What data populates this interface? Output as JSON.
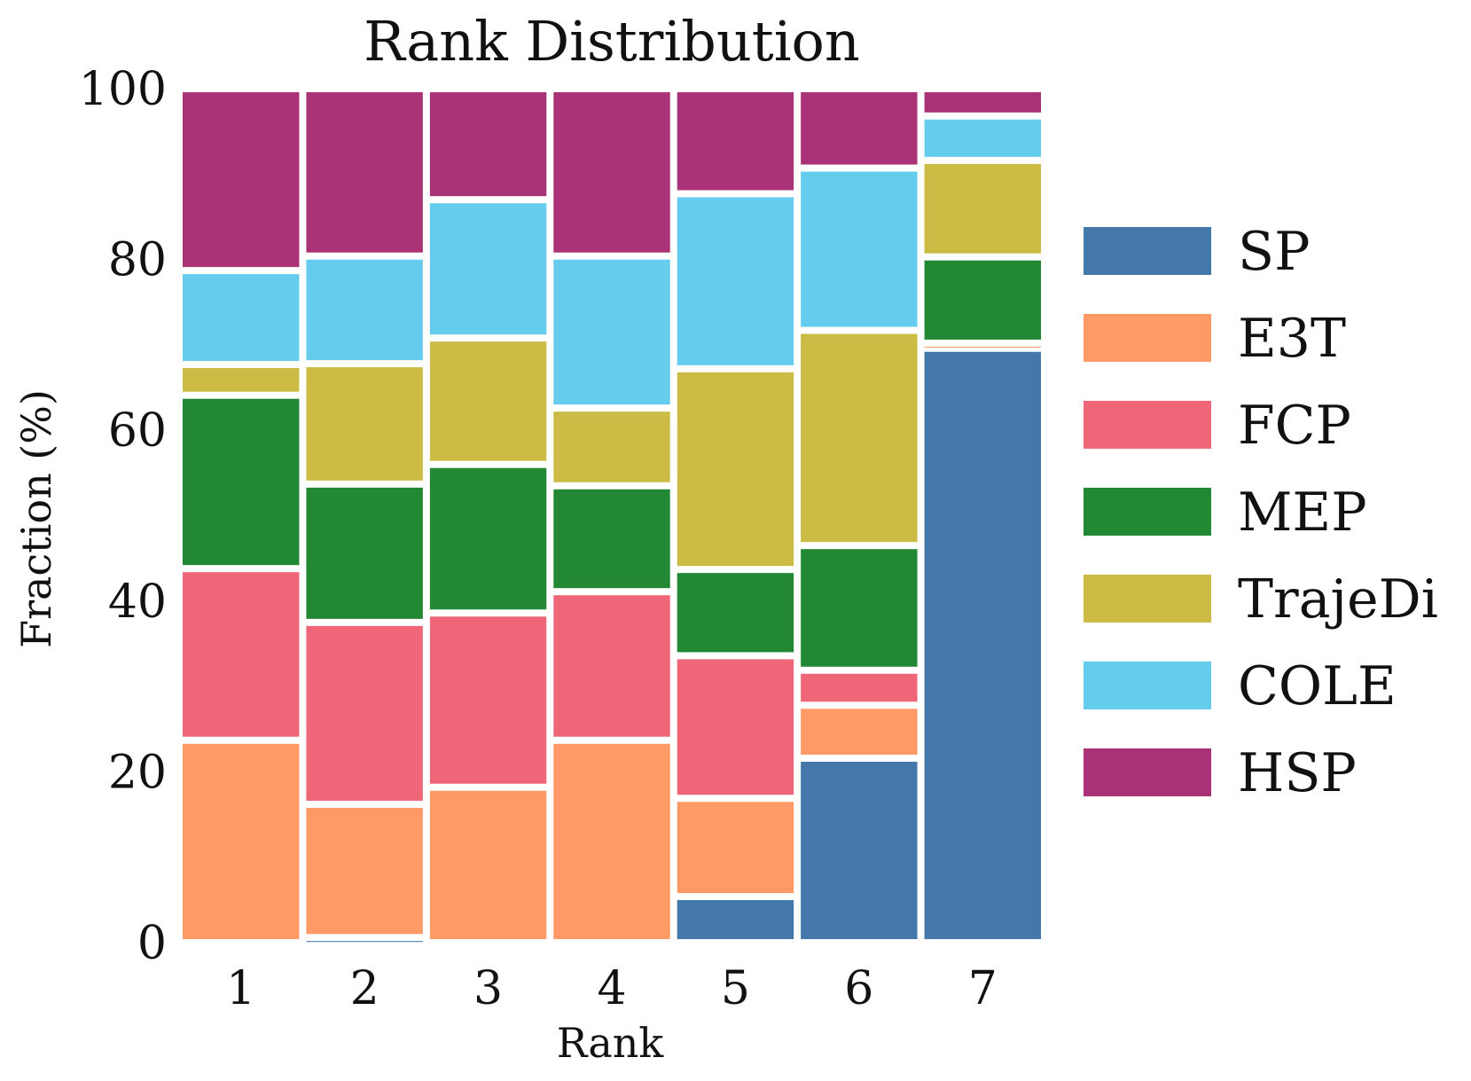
{
  "chart_data": {
    "type": "bar",
    "stacked": true,
    "title": "Rank Distribution",
    "xlabel": "Rank",
    "ylabel": "Fraction (%)",
    "ylim": [
      0,
      100
    ],
    "yticks": [
      "0",
      "20",
      "40",
      "60",
      "80",
      "100"
    ],
    "categories": [
      "1",
      "2",
      "3",
      "4",
      "5",
      "6",
      "7"
    ],
    "grid": false,
    "legend_position": "right",
    "series": [
      {
        "name": "SP",
        "color": "#4477AA",
        "values": [
          0,
          0.6,
          0,
          0,
          5.4,
          21.6,
          69.6
        ]
      },
      {
        "name": "E3T",
        "color": "#FF9966",
        "values": [
          23.7,
          15.6,
          18.2,
          23.7,
          11.5,
          6.2,
          0.6
        ]
      },
      {
        "name": "FCP",
        "color": "#EE6677",
        "values": [
          20.1,
          21.3,
          20.4,
          17.4,
          16.7,
          4.1,
          0
        ]
      },
      {
        "name": "MEP",
        "color": "#228833",
        "values": [
          20.3,
          16.2,
          17.4,
          12.4,
          10.1,
          14.6,
          10.1
        ]
      },
      {
        "name": "TrajeDi",
        "color": "#CCBB44",
        "values": [
          3.6,
          14.1,
          14.8,
          9.1,
          23.5,
          25.2,
          11.3
        ]
      },
      {
        "name": "COLE",
        "color": "#66CCEE",
        "values": [
          11.0,
          12.6,
          16.2,
          17.8,
          20.5,
          19.0,
          5.2
        ]
      },
      {
        "name": "HSP",
        "color": "#AA3377",
        "values": [
          21.3,
          19.6,
          13.0,
          19.6,
          12.3,
          9.3,
          3.2
        ]
      }
    ]
  }
}
